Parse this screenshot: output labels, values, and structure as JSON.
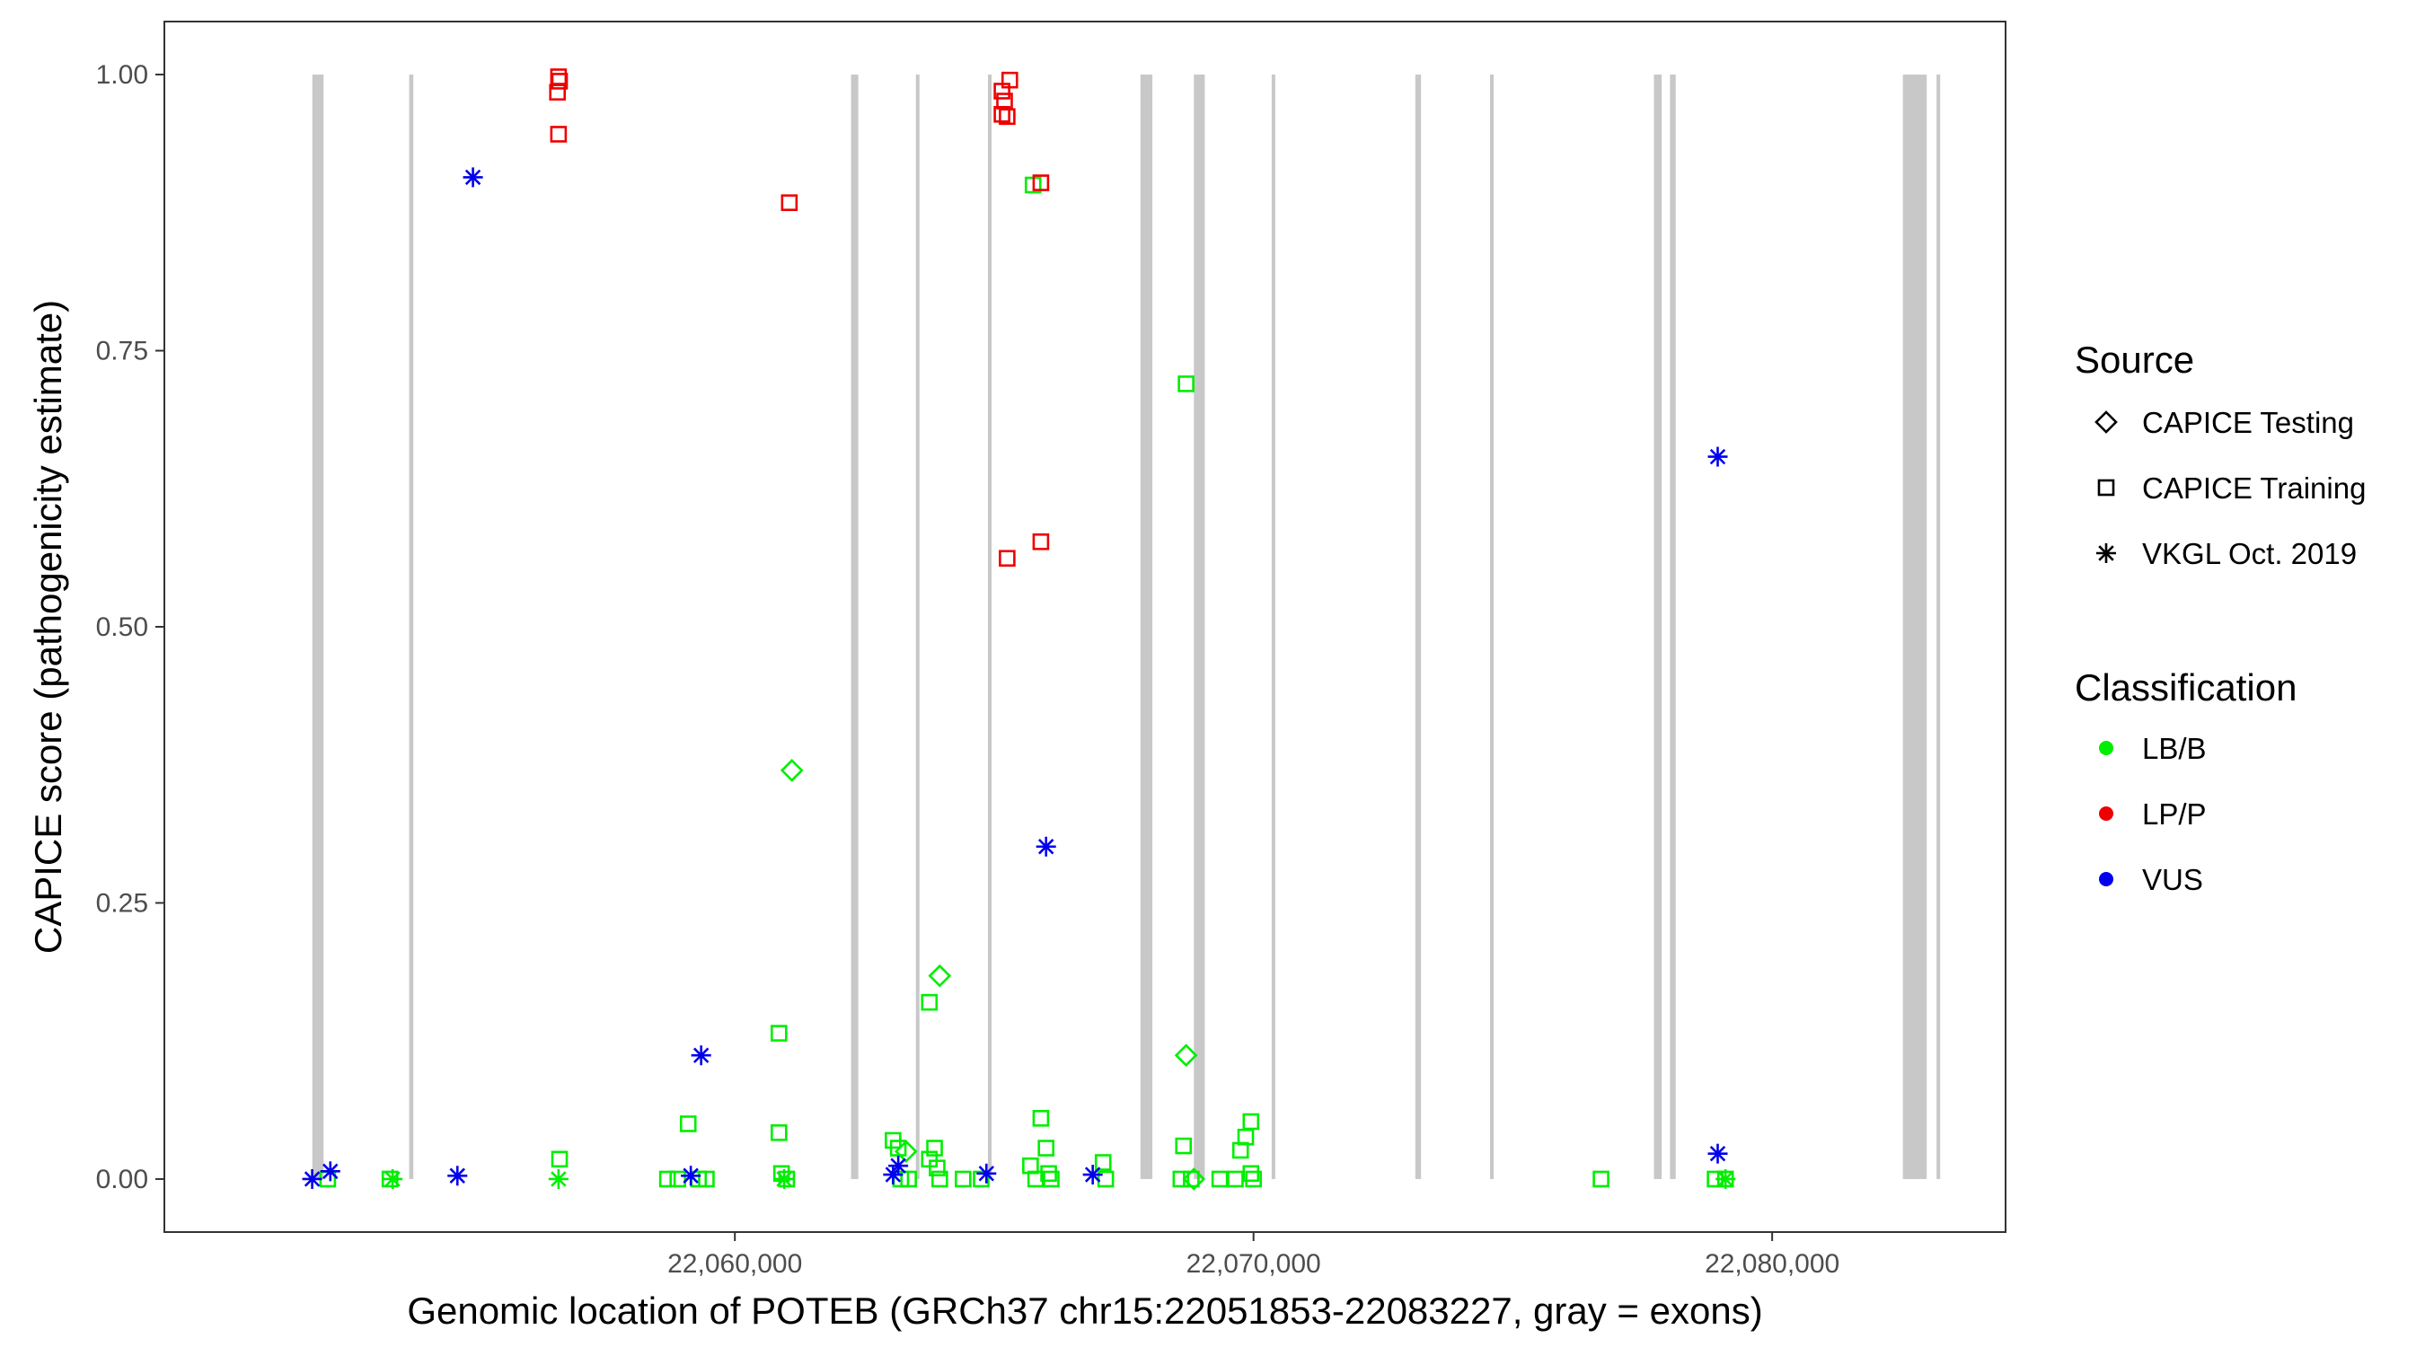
{
  "chart_data": {
    "type": "scatter",
    "xlabel": "Genomic location of POTEB (GRCh37 chr15:22051853-22083227, gray = exons)",
    "ylabel": "CAPICE score (pathogenicity estimate)",
    "xlim": [
      22049000,
      22084500
    ],
    "ylim": [
      -0.048,
      1.048
    ],
    "x_ticks": [
      22060000,
      22070000,
      22080000
    ],
    "x_tick_labels": [
      "22,060,000",
      "22,070,000",
      "22,080,000"
    ],
    "y_ticks": [
      0,
      0.25,
      0.5,
      0.75,
      1
    ],
    "y_tick_labels": [
      "0.00",
      "0.25",
      "0.50",
      "0.75",
      "1.00"
    ],
    "grid": false,
    "exons": [
      [
        22051853,
        22052070
      ],
      [
        22053720,
        22053800
      ],
      [
        22062240,
        22062380
      ],
      [
        22063490,
        22063520
      ],
      [
        22064880,
        22064930
      ],
      [
        22067820,
        22068050
      ],
      [
        22068850,
        22069060
      ],
      [
        22070350,
        22070390
      ],
      [
        22073120,
        22073230
      ],
      [
        22074560,
        22074610
      ],
      [
        22077720,
        22077870
      ],
      [
        22078030,
        22078140
      ],
      [
        22082520,
        22082980
      ],
      [
        22083170,
        22083227
      ]
    ],
    "exon_color": "#c8c8c8",
    "legend": {
      "position": "right",
      "source_title": "Source",
      "source_items": [
        {
          "label": "CAPICE Testing",
          "shape": "diamond"
        },
        {
          "label": "CAPICE Training",
          "shape": "square"
        },
        {
          "label": "VKGL Oct. 2019",
          "shape": "asterisk"
        }
      ],
      "class_title": "Classification",
      "class_items": [
        {
          "label": "LB/B",
          "color": "#00ee00"
        },
        {
          "label": "LP/P",
          "color": "#ee0000"
        },
        {
          "label": "VUS",
          "color": "#0000ee"
        }
      ]
    },
    "series": [
      {
        "source": "CAPICE Training",
        "classification": "LB/B",
        "shape": "square",
        "color": "#00ee00",
        "points": [
          [
            22052150,
            0.0
          ],
          [
            22053350,
            0.0
          ],
          [
            22056620,
            0.018
          ],
          [
            22058700,
            0.0
          ],
          [
            22058900,
            0.0
          ],
          [
            22059100,
            0.05
          ],
          [
            22059300,
            0.0
          ],
          [
            22059450,
            0.0
          ],
          [
            22060850,
            0.132
          ],
          [
            22060850,
            0.042
          ],
          [
            22060900,
            0.005
          ],
          [
            22061000,
            0.0
          ],
          [
            22063050,
            0.035
          ],
          [
            22063150,
            0.028
          ],
          [
            22063200,
            0.0
          ],
          [
            22063350,
            0.0
          ],
          [
            22063750,
            0.16
          ],
          [
            22063750,
            0.018
          ],
          [
            22063850,
            0.028
          ],
          [
            22063900,
            0.01
          ],
          [
            22063950,
            0.0
          ],
          [
            22064400,
            0.0
          ],
          [
            22064750,
            0.0
          ],
          [
            22065750,
            0.9
          ],
          [
            22065700,
            0.012
          ],
          [
            22065800,
            0.0
          ],
          [
            22065900,
            0.055
          ],
          [
            22066000,
            0.028
          ],
          [
            22066050,
            0.005
          ],
          [
            22066100,
            0.0
          ],
          [
            22067100,
            0.015
          ],
          [
            22067150,
            0.0
          ],
          [
            22068700,
            0.72
          ],
          [
            22068650,
            0.03
          ],
          [
            22068600,
            0.0
          ],
          [
            22068800,
            0.0
          ],
          [
            22069350,
            0.0
          ],
          [
            22069650,
            0.0
          ],
          [
            22069750,
            0.026
          ],
          [
            22069850,
            0.038
          ],
          [
            22069950,
            0.052
          ],
          [
            22069950,
            0.005
          ],
          [
            22070000,
            0.0
          ],
          [
            22076700,
            0.0
          ],
          [
            22078900,
            0.0
          ],
          [
            22079100,
            0.0
          ]
        ]
      },
      {
        "source": "CAPICE Training",
        "classification": "LP/P",
        "shape": "square",
        "color": "#ee0000",
        "points": [
          [
            22056600,
            0.998
          ],
          [
            22056620,
            0.994
          ],
          [
            22056580,
            0.984
          ],
          [
            22056600,
            0.946
          ],
          [
            22061050,
            0.884
          ],
          [
            22065150,
            0.985
          ],
          [
            22065200,
            0.976
          ],
          [
            22065150,
            0.964
          ],
          [
            22065250,
            0.962
          ],
          [
            22065300,
            0.995
          ],
          [
            22065250,
            0.562
          ],
          [
            22065900,
            0.902
          ],
          [
            22065900,
            0.577
          ]
        ]
      },
      {
        "source": "CAPICE Testing",
        "classification": "LB/B",
        "shape": "diamond",
        "color": "#00ee00",
        "points": [
          [
            22061100,
            0.37
          ],
          [
            22063300,
            0.025
          ],
          [
            22063950,
            0.184
          ],
          [
            22068700,
            0.112
          ],
          [
            22068850,
            0.0
          ]
        ]
      },
      {
        "source": "VKGL Oct. 2019",
        "classification": "LB/B",
        "shape": "asterisk",
        "color": "#00ee00",
        "points": [
          [
            22053400,
            0.0
          ],
          [
            22056600,
            0.0
          ],
          [
            22060950,
            0.0
          ],
          [
            22079100,
            0.0
          ]
        ]
      },
      {
        "source": "VKGL Oct. 2019",
        "classification": "VUS",
        "shape": "asterisk",
        "color": "#0000ee",
        "points": [
          [
            22051850,
            0.0
          ],
          [
            22052200,
            0.007
          ],
          [
            22054650,
            0.003
          ],
          [
            22054950,
            0.907
          ],
          [
            22059150,
            0.003
          ],
          [
            22059350,
            0.112
          ],
          [
            22063050,
            0.004
          ],
          [
            22063150,
            0.012
          ],
          [
            22064850,
            0.005
          ],
          [
            22066000,
            0.301
          ],
          [
            22066900,
            0.004
          ],
          [
            22078950,
            0.654
          ],
          [
            22078950,
            0.023
          ]
        ]
      }
    ]
  }
}
